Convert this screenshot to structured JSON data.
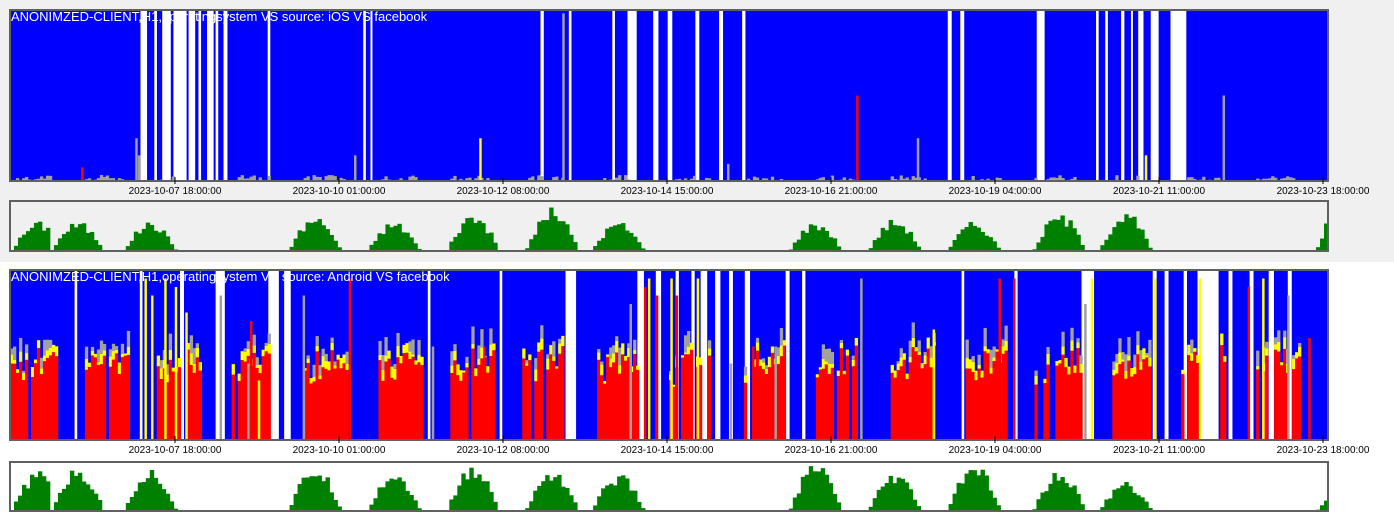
{
  "colors": {
    "blue": "#0000ff",
    "white": "#ffffff",
    "red": "#ff0000",
    "yellow": "#ffff00",
    "grey": "#a0a0a0",
    "green": "#008000",
    "frame": "#606060"
  },
  "x_ticks": [
    "2023-10-07 18:00:00",
    "2023-10-10 01:00:00",
    "2023-10-12 08:00:00",
    "2023-10-14 15:00:00",
    "2023-10-16 21:00:00",
    "2023-10-19 04:00:00",
    "2023-10-21 11:00:00",
    "2023-10-23 18:00:00"
  ],
  "chart_data": [
    {
      "type": "bar",
      "title": "ANONIMZED-CLIENT,H1,operatingsystem VS source: iOS VS facebook",
      "x_range": [
        "2023-10-05 09:00:00",
        "2023-10-23 18:00:00"
      ],
      "x_ticks": [
        "2023-10-07 18:00:00",
        "2023-10-10 01:00:00",
        "2023-10-12 08:00:00",
        "2023-10-14 15:00:00",
        "2023-10-16 21:00:00",
        "2023-10-19 04:00:00",
        "2023-10-21 11:00:00",
        "2023-10-23 18:00:00"
      ],
      "background_series": "blue",
      "white_gaps": [
        [
          9.9,
          10.4
        ],
        [
          10.95,
          11.15
        ],
        [
          11.55,
          12.2
        ],
        [
          12.4,
          13.4
        ],
        [
          13.55,
          14.05
        ],
        [
          14.3,
          14.5
        ],
        [
          14.95,
          15.45
        ],
        [
          15.6,
          15.8
        ],
        [
          16.2,
          16.5
        ],
        [
          19.55,
          19.75
        ],
        [
          26.8,
          27.0
        ],
        [
          27.35,
          27.5
        ],
        [
          40.25,
          40.5
        ],
        [
          42.4,
          42.6
        ],
        [
          45.7,
          45.9
        ],
        [
          46.85,
          47.55
        ],
        [
          48.8,
          49.2
        ],
        [
          49.9,
          50.25
        ],
        [
          52.0,
          52.3
        ],
        [
          53.8,
          54.1
        ],
        [
          55.55,
          55.8
        ],
        [
          71.15,
          71.45
        ],
        [
          72.1,
          72.4
        ],
        [
          77.9,
          78.5
        ],
        [
          82.4,
          82.6
        ],
        [
          83.1,
          83.3
        ],
        [
          84.3,
          84.55
        ],
        [
          85.05,
          85.2
        ],
        [
          85.6,
          86.0
        ],
        [
          86.55,
          87.15
        ],
        [
          88.05,
          89.25
        ]
      ],
      "red_spikes": [
        [
          5.4,
          0.08
        ],
        [
          64.2,
          0.5
        ]
      ],
      "yellow_spikes": [
        [
          35.6,
          0.25
        ],
        [
          86.1,
          0.15
        ]
      ],
      "grey_spikes": [
        [
          9.5,
          0.25
        ],
        [
          9.7,
          0.15
        ],
        [
          26.1,
          0.15
        ],
        [
          41.9,
          0.98
        ],
        [
          54.4,
          0.1
        ],
        [
          68.8,
          0.25
        ],
        [
          92.0,
          0.5
        ]
      ],
      "baseline_level": 0.03,
      "volume_series": {
        "color": "green",
        "profile": [
          {
            "t": 0.0,
            "h": 0.55
          },
          {
            "t": 3.0,
            "h": 0.55
          },
          {
            "t": 8.5,
            "h": 0.55
          },
          {
            "t": 21.0,
            "h": 0.65
          },
          {
            "t": 27.0,
            "h": 0.55
          },
          {
            "t": 33.0,
            "h": 0.7
          },
          {
            "t": 39.0,
            "h": 0.8
          },
          {
            "t": 44.0,
            "h": 0.55
          },
          {
            "t": 59.0,
            "h": 0.55
          },
          {
            "t": 65.0,
            "h": 0.6
          },
          {
            "t": 71.0,
            "h": 0.55
          },
          {
            "t": 77.5,
            "h": 0.7
          },
          {
            "t": 82.5,
            "h": 0.72
          },
          {
            "t": 99.0,
            "h": 1.0
          }
        ]
      }
    },
    {
      "type": "bar",
      "title": "ANONIMZED-CLIENT,H1,operatingsystem VS source: Android VS facebook",
      "x_range": [
        "2023-10-05 09:00:00",
        "2023-10-23 18:00:00"
      ],
      "x_ticks": [
        "2023-10-07 18:00:00",
        "2023-10-10 01:00:00",
        "2023-10-12 08:00:00",
        "2023-10-14 15:00:00",
        "2023-10-16 21:00:00",
        "2023-10-19 04:00:00",
        "2023-10-21 11:00:00",
        "2023-10-23 18:00:00"
      ],
      "background_series": "blue",
      "white_gaps": [
        [
          4.9,
          5.1
        ],
        [
          9.85,
          10.05
        ],
        [
          12.9,
          13.2
        ],
        [
          15.6,
          16.3
        ],
        [
          19.6,
          20.4
        ],
        [
          20.8,
          21.3
        ],
        [
          31.7,
          31.9
        ],
        [
          37.15,
          37.35
        ],
        [
          42.15,
          42.95
        ],
        [
          47.6,
          48.1
        ],
        [
          49.0,
          49.4
        ],
        [
          50.5,
          50.75
        ],
        [
          51.7,
          51.95
        ],
        [
          52.4,
          52.9
        ],
        [
          53.5,
          53.9
        ],
        [
          54.55,
          54.85
        ],
        [
          55.75,
          56.15
        ],
        [
          58.85,
          59.15
        ],
        [
          60.1,
          60.35
        ],
        [
          72.2,
          72.4
        ],
        [
          76.2,
          76.45
        ],
        [
          81.3,
          82.25
        ],
        [
          86.7,
          87.0
        ],
        [
          87.6,
          87.9
        ],
        [
          89.05,
          89.3
        ],
        [
          90.1,
          91.7
        ],
        [
          92.45,
          92.75
        ],
        [
          94.05,
          94.35
        ],
        [
          95.5,
          95.9
        ],
        [
          96.95,
          97.25
        ]
      ],
      "red_spikes": [
        [
          18.2,
          0.7
        ],
        [
          19.3,
          0.5
        ],
        [
          25.7,
          0.95
        ],
        [
          35.9,
          0.55
        ],
        [
          48.1,
          0.9
        ],
        [
          49.0,
          0.85
        ],
        [
          50.5,
          0.85
        ],
        [
          56.3,
          0.55
        ],
        [
          75.0,
          0.95
        ],
        [
          76.1,
          0.95
        ],
        [
          98.5,
          0.6
        ],
        [
          93.9,
          0.9
        ]
      ],
      "yellow_spikes": [
        [
          10.2,
          0.95
        ],
        [
          10.7,
          0.85
        ],
        [
          11.7,
          0.95
        ],
        [
          12.5,
          0.9
        ],
        [
          13.3,
          0.75
        ],
        [
          18.8,
          0.35
        ],
        [
          48.4,
          0.95
        ],
        [
          50.1,
          0.95
        ],
        [
          52.1,
          0.95
        ],
        [
          70.0,
          0.65
        ],
        [
          82.0,
          0.95
        ],
        [
          86.8,
          0.95
        ],
        [
          90.2,
          0.95
        ],
        [
          95.0,
          0.95
        ]
      ],
      "grey_spikes": [
        [
          15.9,
          0.85
        ],
        [
          18.0,
          0.45
        ],
        [
          22.2,
          0.85
        ],
        [
          32.0,
          0.55
        ],
        [
          47.0,
          0.8
        ],
        [
          54.6,
          0.45
        ],
        [
          58.0,
          0.55
        ],
        [
          64.5,
          0.95
        ],
        [
          81.5,
          0.8
        ],
        [
          96.9,
          0.85
        ]
      ],
      "volume_series": {
        "color": "green",
        "profile": [
          {
            "t": 0.0,
            "h": 0.75
          },
          {
            "t": 3.0,
            "h": 0.8
          },
          {
            "t": 8.5,
            "h": 0.8
          },
          {
            "t": 21.0,
            "h": 0.85
          },
          {
            "t": 27.0,
            "h": 0.75
          },
          {
            "t": 33.0,
            "h": 0.85
          },
          {
            "t": 39.0,
            "h": 0.8
          },
          {
            "t": 44.0,
            "h": 0.7
          },
          {
            "t": 59.0,
            "h": 0.9
          },
          {
            "t": 65.0,
            "h": 0.7
          },
          {
            "t": 71.0,
            "h": 0.9
          },
          {
            "t": 77.5,
            "h": 0.75
          },
          {
            "t": 82.5,
            "h": 0.55
          },
          {
            "t": 99.0,
            "h": 0.45
          }
        ]
      }
    }
  ]
}
